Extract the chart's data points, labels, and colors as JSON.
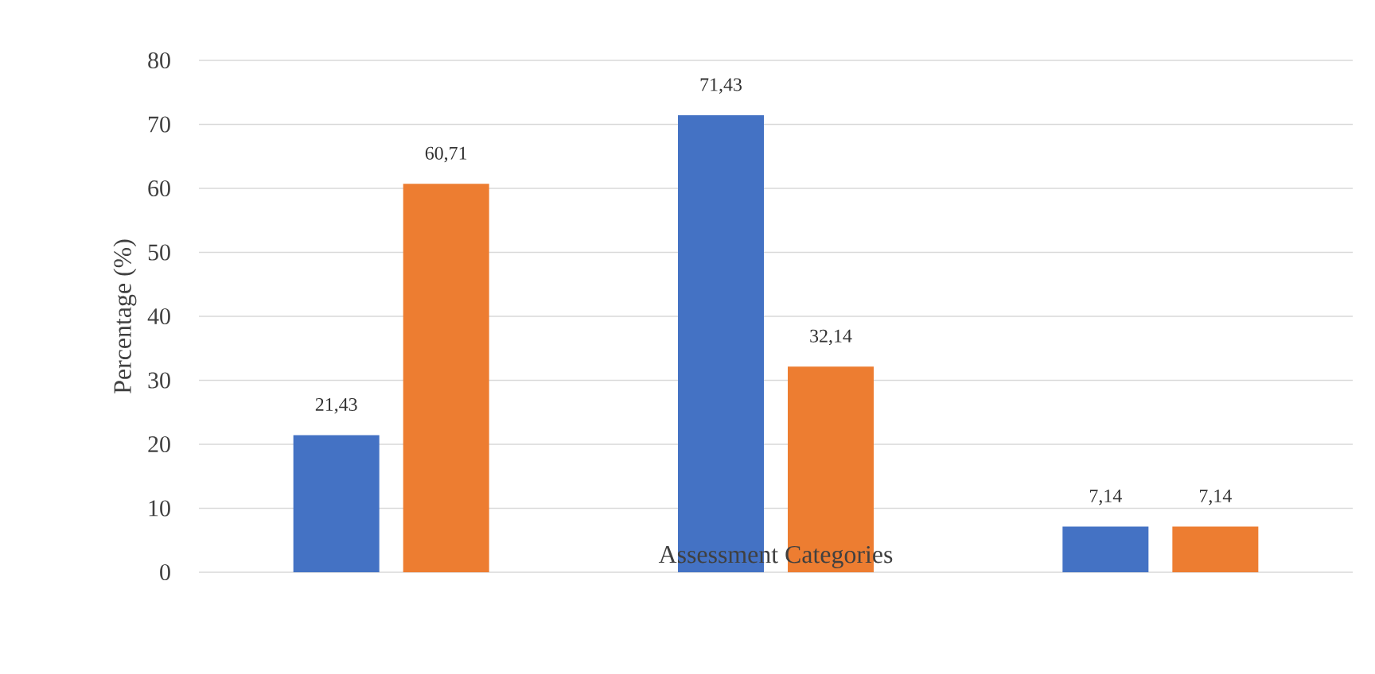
{
  "chart_data": {
    "type": "bar",
    "xlabel": "Assessment Categories",
    "ylabel": "Percentage (%)",
    "categories": [
      null,
      null,
      null
    ],
    "series": [
      {
        "color": "#4472c4",
        "values": [
          21.43,
          71.43,
          7.14
        ],
        "value_labels": [
          "21,43",
          "71,43",
          "7,14"
        ]
      },
      {
        "color": "#ed7d31",
        "values": [
          60.71,
          32.14,
          7.14
        ],
        "value_labels": [
          "60,71",
          "32,14",
          "7,14"
        ]
      }
    ],
    "ylim": [
      0,
      80
    ],
    "yticks": [
      0,
      10,
      20,
      30,
      40,
      50,
      60,
      70,
      80
    ],
    "grid": "y"
  }
}
